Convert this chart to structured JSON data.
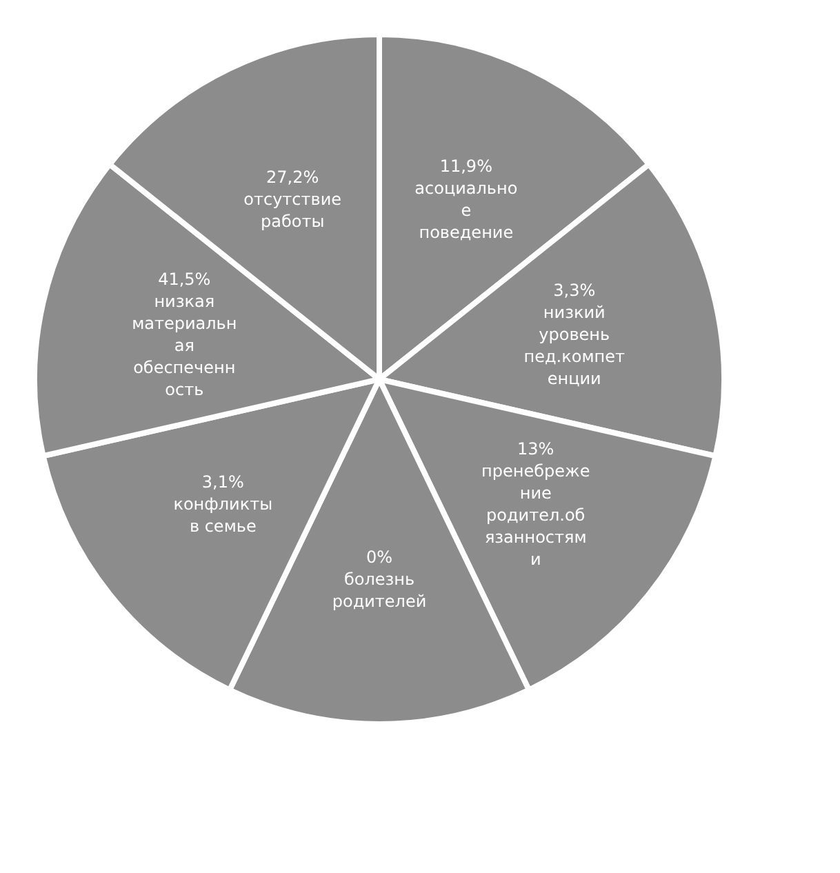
{
  "chart_data": {
    "type": "other",
    "categories": [
      "асоциальное поведение",
      "низкий уровень пед.компетенции",
      "пренебрежение родител.обязанностями",
      "болезнь родителей",
      "конфликты в семье",
      "низкая материальная обеспеченность",
      "отсутствие работы"
    ],
    "values": [
      11.9,
      3.3,
      13,
      0,
      3.1,
      41.5,
      27.2
    ],
    "value_labels": [
      "11,9%",
      "3,3%",
      "13%",
      "0%",
      "3,1%",
      "41,5%",
      "27,2%"
    ],
    "color": "#8c8c8c",
    "legend": false
  }
}
